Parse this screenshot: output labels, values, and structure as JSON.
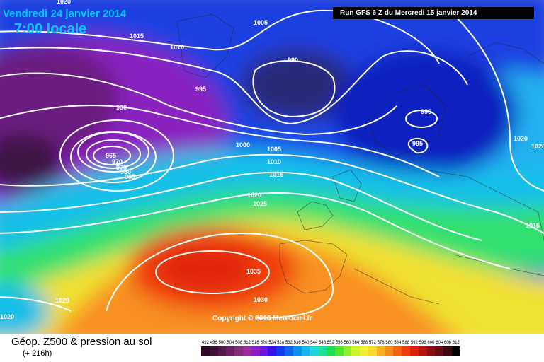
{
  "header": {
    "date": "Vendredi 24 janvier 2014",
    "time": "7:00 locale",
    "run": "Run GFS 6 Z du Mercredi 15 janvier 2014"
  },
  "copyright": "Copyright © 2013 Meteociel.fr",
  "legend": {
    "title": "Géop. Z500 & pression au sol",
    "subtitle": "(+ 216h)",
    "scale": [
      {
        "label": "492",
        "color": "#2a0a24"
      },
      {
        "label": "496",
        "color": "#3c1236"
      },
      {
        "label": "500",
        "color": "#521a4a"
      },
      {
        "label": "504",
        "color": "#6a2260"
      },
      {
        "label": "508",
        "color": "#862a7a"
      },
      {
        "label": "512",
        "color": "#9e2aa0"
      },
      {
        "label": "516",
        "color": "#8a1ec8"
      },
      {
        "label": "520",
        "color": "#6a14e0"
      },
      {
        "label": "524",
        "color": "#3a10ee"
      },
      {
        "label": "528",
        "color": "#1438f0"
      },
      {
        "label": "532",
        "color": "#0a64f2"
      },
      {
        "label": "536",
        "color": "#0a90f4"
      },
      {
        "label": "540",
        "color": "#14b8ee"
      },
      {
        "label": "544",
        "color": "#1ad6d6"
      },
      {
        "label": "548",
        "color": "#1ae09a"
      },
      {
        "label": "552",
        "color": "#20e050"
      },
      {
        "label": "556",
        "color": "#50e830"
      },
      {
        "label": "560",
        "color": "#90f028"
      },
      {
        "label": "564",
        "color": "#c8f428"
      },
      {
        "label": "568",
        "color": "#f0f030"
      },
      {
        "label": "572",
        "color": "#f8d828"
      },
      {
        "label": "576",
        "color": "#f8b020"
      },
      {
        "label": "580",
        "color": "#f88818"
      },
      {
        "label": "584",
        "color": "#f46010"
      },
      {
        "label": "588",
        "color": "#ee3c0c"
      },
      {
        "label": "592",
        "color": "#dc1e0a"
      },
      {
        "label": "596",
        "color": "#b41410"
      },
      {
        "label": "600",
        "color": "#8c0e14"
      },
      {
        "label": "604",
        "color": "#660a14"
      },
      {
        "label": "608",
        "color": "#3e0812"
      },
      {
        "label": "612",
        "color": "#000000"
      }
    ]
  },
  "isobars": [
    "1020",
    "1015",
    "1010",
    "1005",
    "995",
    "990",
    "990",
    "965",
    "970",
    "975",
    "980",
    "985",
    "1000",
    "1005",
    "1010",
    "1015",
    "1020",
    "1025",
    "1035",
    "1030",
    "1020",
    "1020",
    "995",
    "995",
    "1020",
    "1015",
    "1020"
  ]
}
